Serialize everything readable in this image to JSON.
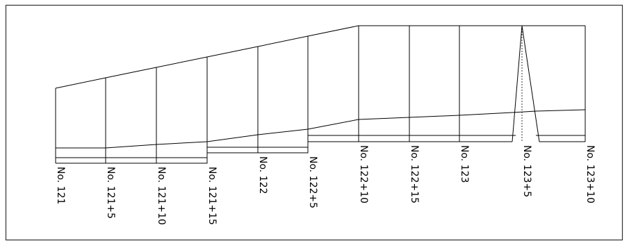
{
  "stations": [
    {
      "label": "No. 121"
    },
    {
      "label": "No. 121+5"
    },
    {
      "label": "No. 121+10"
    },
    {
      "label": "No. 121+15"
    },
    {
      "label": "No. 122"
    },
    {
      "label": "No. 122+5"
    },
    {
      "label": "No. 122+10"
    },
    {
      "label": "No. 122+15"
    },
    {
      "label": "No. 123"
    },
    {
      "label": "No. 123+5"
    },
    {
      "label": "No. 123+10"
    }
  ]
}
